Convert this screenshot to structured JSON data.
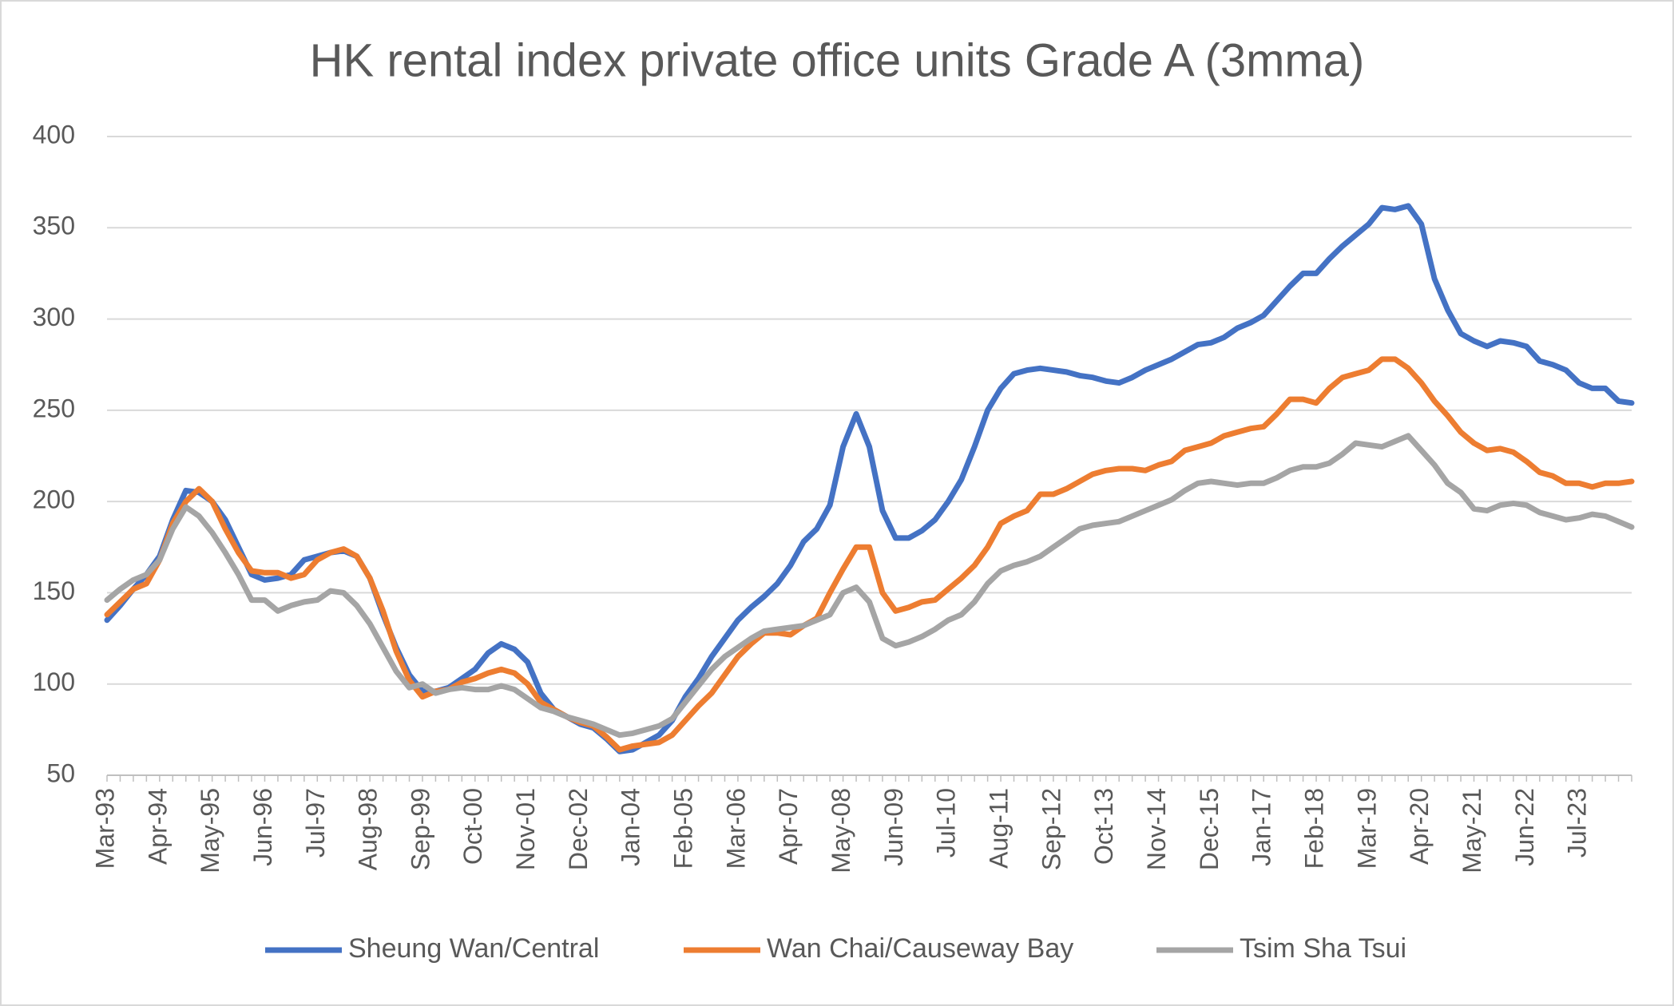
{
  "chart_data": {
    "type": "line",
    "title": "HK rental index private office units Grade A (3mma)",
    "categories": [
      "Mar-93",
      null,
      null,
      null,
      "Apr-94",
      null,
      null,
      null,
      "May-95",
      null,
      null,
      null,
      "Jun-96",
      null,
      null,
      null,
      "Jul-97",
      null,
      null,
      null,
      "Aug-98",
      null,
      null,
      null,
      "Sep-99",
      null,
      null,
      null,
      "Oct-00",
      null,
      null,
      null,
      "Nov-01",
      null,
      null,
      null,
      "Dec-02",
      null,
      null,
      null,
      "Jan-04",
      null,
      null,
      null,
      "Feb-05",
      null,
      null,
      null,
      "Mar-06",
      null,
      null,
      null,
      "Apr-07",
      null,
      null,
      null,
      "May-08",
      null,
      null,
      null,
      "Jun-09",
      null,
      null,
      null,
      "Jul-10",
      null,
      null,
      null,
      "Aug-11",
      null,
      null,
      null,
      "Sep-12",
      null,
      null,
      null,
      "Oct-13",
      null,
      null,
      null,
      "Nov-14",
      null,
      null,
      null,
      "Dec-15",
      null,
      null,
      null,
      "Jan-17",
      null,
      null,
      null,
      "Feb-18",
      null,
      null,
      null,
      "Mar-19",
      null,
      null,
      null,
      "Apr-20",
      null,
      null,
      null,
      "May-21",
      null,
      null,
      null,
      "Jun-22",
      null,
      null,
      null,
      "Jul-23",
      null,
      null,
      null,
      null
    ],
    "series": [
      {
        "name": "Sheung Wan/Central",
        "color": "#4472c4",
        "values": [
          135,
          143,
          152,
          160,
          170,
          190,
          206,
          205,
          200,
          190,
          175,
          160,
          157,
          158,
          160,
          168,
          170,
          172,
          173,
          170,
          158,
          138,
          120,
          105,
          96,
          96,
          98,
          103,
          108,
          117,
          122,
          119,
          112,
          95,
          86,
          82,
          78,
          76,
          70,
          63,
          64,
          68,
          72,
          80,
          93,
          103,
          115,
          125,
          135,
          142,
          148,
          155,
          165,
          178,
          185,
          198,
          230,
          248,
          230,
          195,
          180,
          180,
          184,
          190,
          200,
          212,
          230,
          250,
          262,
          270,
          272,
          273,
          272,
          271,
          269,
          268,
          266,
          265,
          268,
          272,
          275,
          278,
          282,
          286,
          287,
          290,
          295,
          298,
          302,
          310,
          318,
          325,
          325,
          333,
          340,
          346,
          352,
          361,
          360,
          362,
          352,
          322,
          305,
          292,
          288,
          285,
          288,
          287,
          285,
          277,
          275,
          272,
          265,
          262,
          262,
          255,
          254
        ]
      },
      {
        "name": "Wan Chai/Causeway Bay",
        "color": "#ed7d31",
        "values": [
          138,
          145,
          152,
          155,
          168,
          188,
          200,
          207,
          200,
          185,
          172,
          162,
          161,
          161,
          158,
          160,
          168,
          172,
          174,
          170,
          158,
          140,
          118,
          102,
          93,
          96,
          97,
          101,
          103,
          106,
          108,
          106,
          100,
          90,
          86,
          82,
          79,
          77,
          71,
          64,
          66,
          67,
          68,
          72,
          80,
          88,
          95,
          105,
          115,
          122,
          128,
          128,
          127,
          132,
          136,
          150,
          163,
          175,
          175,
          150,
          140,
          142,
          145,
          146,
          152,
          158,
          165,
          175,
          188,
          192,
          195,
          204,
          204,
          207,
          211,
          215,
          217,
          218,
          218,
          217,
          220,
          222,
          228,
          230,
          232,
          236,
          238,
          240,
          241,
          248,
          256,
          256,
          254,
          262,
          268,
          270,
          272,
          278,
          278,
          273,
          265,
          255,
          247,
          238,
          232,
          228,
          229,
          227,
          222,
          216,
          214,
          210,
          210,
          208,
          210,
          210,
          211
        ]
      },
      {
        "name": "Tsim Sha Tsui",
        "color": "#a5a5a5",
        "values": [
          146,
          152,
          157,
          160,
          168,
          185,
          197,
          192,
          183,
          172,
          160,
          146,
          146,
          140,
          143,
          145,
          146,
          151,
          150,
          143,
          133,
          120,
          107,
          98,
          100,
          95,
          97,
          98,
          97,
          97,
          99,
          97,
          92,
          87,
          85,
          82,
          80,
          78,
          75,
          72,
          73,
          75,
          77,
          81,
          90,
          99,
          108,
          115,
          120,
          125,
          129,
          130,
          131,
          132,
          135,
          138,
          150,
          153,
          145,
          125,
          121,
          123,
          126,
          130,
          135,
          138,
          145,
          155,
          162,
          165,
          167,
          170,
          175,
          180,
          185,
          187,
          188,
          189,
          192,
          195,
          198,
          201,
          206,
          210,
          211,
          210,
          209,
          210,
          210,
          213,
          217,
          219,
          219,
          221,
          226,
          232,
          231,
          230,
          233,
          236,
          228,
          220,
          210,
          205,
          196,
          195,
          198,
          199,
          198,
          194,
          192,
          190,
          191,
          193,
          192,
          189,
          186
        ]
      }
    ],
    "ylim": [
      50,
      400
    ],
    "yticks": [
      50,
      100,
      150,
      200,
      250,
      300,
      350,
      400
    ],
    "grid": true,
    "legend": "bottom"
  }
}
